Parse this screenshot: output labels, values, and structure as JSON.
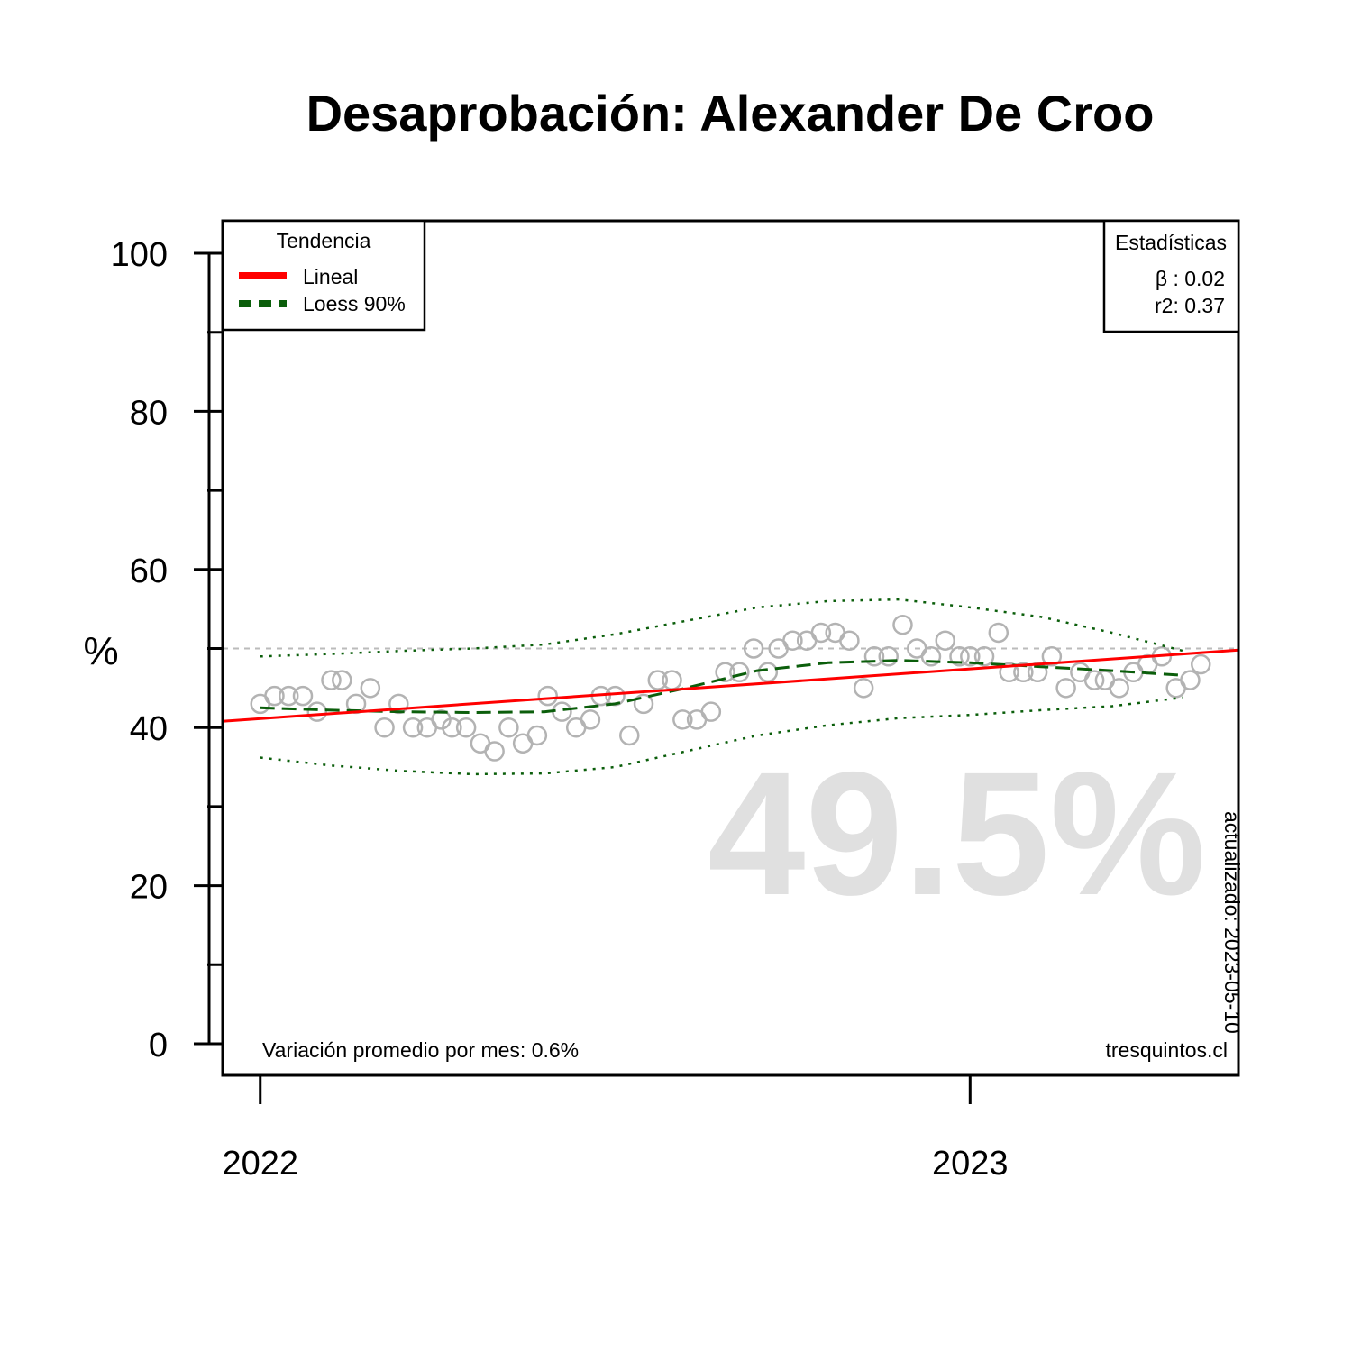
{
  "chart_data": {
    "type": "scatter",
    "title": "Desaprobación: Alexander De Croo",
    "ylabel": "%",
    "xlabel": "",
    "ylim": [
      0,
      100
    ],
    "y_ticks": [
      0,
      20,
      40,
      60,
      80,
      100
    ],
    "y_minor_ticks": [
      10,
      30,
      50,
      70,
      90
    ],
    "x_ticks": [
      {
        "label": "2022",
        "value": 2022.0
      },
      {
        "label": "2023",
        "value": 2023.0
      }
    ],
    "xlim": [
      2021.947,
      2023.378
    ],
    "reference_line": {
      "value": 50,
      "color": "#bbbbbb"
    },
    "big_value": "49.5%",
    "points": [
      [
        2022.0,
        43
      ],
      [
        2022.02,
        44
      ],
      [
        2022.04,
        44
      ],
      [
        2022.06,
        44
      ],
      [
        2022.08,
        42
      ],
      [
        2022.1,
        46
      ],
      [
        2022.115,
        46
      ],
      [
        2022.135,
        43
      ],
      [
        2022.155,
        45
      ],
      [
        2022.175,
        40
      ],
      [
        2022.195,
        43
      ],
      [
        2022.215,
        40
      ],
      [
        2022.235,
        40
      ],
      [
        2022.255,
        41
      ],
      [
        2022.27,
        40
      ],
      [
        2022.29,
        40
      ],
      [
        2022.31,
        38
      ],
      [
        2022.33,
        37
      ],
      [
        2022.35,
        40
      ],
      [
        2022.37,
        38
      ],
      [
        2022.39,
        39
      ],
      [
        2022.405,
        44
      ],
      [
        2022.425,
        42
      ],
      [
        2022.445,
        40
      ],
      [
        2022.465,
        41
      ],
      [
        2022.48,
        44
      ],
      [
        2022.5,
        44
      ],
      [
        2022.52,
        39
      ],
      [
        2022.54,
        43
      ],
      [
        2022.56,
        46
      ],
      [
        2022.58,
        46
      ],
      [
        2022.595,
        41
      ],
      [
        2022.615,
        41
      ],
      [
        2022.635,
        42
      ],
      [
        2022.655,
        47
      ],
      [
        2022.675,
        47
      ],
      [
        2022.695,
        50
      ],
      [
        2022.715,
        47
      ],
      [
        2022.73,
        50
      ],
      [
        2022.75,
        51
      ],
      [
        2022.77,
        51
      ],
      [
        2022.79,
        52
      ],
      [
        2022.81,
        52
      ],
      [
        2022.83,
        51
      ],
      [
        2022.85,
        45
      ],
      [
        2022.865,
        49
      ],
      [
        2022.885,
        49
      ],
      [
        2022.905,
        53
      ],
      [
        2022.925,
        50
      ],
      [
        2022.945,
        49
      ],
      [
        2022.965,
        51
      ],
      [
        2022.985,
        49
      ],
      [
        2023.0,
        49
      ],
      [
        2023.02,
        49
      ],
      [
        2023.04,
        52
      ],
      [
        2023.055,
        47
      ],
      [
        2023.075,
        47
      ],
      [
        2023.095,
        47
      ],
      [
        2023.115,
        49
      ],
      [
        2023.135,
        45
      ],
      [
        2023.155,
        47
      ],
      [
        2023.175,
        46
      ],
      [
        2023.19,
        46
      ],
      [
        2023.21,
        45
      ],
      [
        2023.23,
        47
      ],
      [
        2023.25,
        48
      ],
      [
        2023.27,
        49
      ],
      [
        2023.29,
        45
      ],
      [
        2023.31,
        46
      ],
      [
        2023.325,
        48
      ]
    ],
    "linear_trend": {
      "x": [
        2021.947,
        2023.378
      ],
      "y": [
        40.8,
        49.8
      ]
    },
    "loess": {
      "x": [
        2022.0,
        2022.1,
        2022.2,
        2022.3,
        2022.4,
        2022.5,
        2022.6,
        2022.7,
        2022.8,
        2022.9,
        2023.0,
        2023.1,
        2023.2,
        2023.3
      ],
      "y": [
        42.5,
        42.2,
        42.0,
        41.9,
        42.0,
        43.0,
        45.0,
        47.2,
        48.2,
        48.5,
        48.2,
        47.7,
        47.2,
        46.6
      ]
    },
    "loess_upper": {
      "x": [
        2022.0,
        2022.1,
        2022.2,
        2022.3,
        2022.4,
        2022.5,
        2022.6,
        2022.7,
        2022.8,
        2022.9,
        2023.0,
        2023.1,
        2023.2,
        2023.3
      ],
      "y": [
        49.0,
        49.3,
        49.7,
        50.0,
        50.5,
        51.8,
        53.5,
        55.2,
        56.0,
        56.2,
        55.2,
        54.0,
        52.0,
        49.7
      ]
    },
    "loess_lower": {
      "x": [
        2022.0,
        2022.1,
        2022.2,
        2022.3,
        2022.4,
        2022.5,
        2022.6,
        2022.7,
        2022.8,
        2022.9,
        2023.0,
        2023.1,
        2023.2,
        2023.3
      ],
      "y": [
        36.2,
        35.2,
        34.5,
        34.1,
        34.2,
        35.0,
        37.0,
        39.0,
        40.3,
        41.2,
        41.6,
        42.2,
        42.7,
        43.8
      ]
    },
    "legend": {
      "placement": "top-left",
      "title": "Tendencia",
      "entries": [
        {
          "label": "Lineal",
          "style": "solid",
          "color": "#ff0000"
        },
        {
          "label": "Loess 90%",
          "style": "dashed",
          "color": "#0b5e0b"
        }
      ]
    },
    "stats": {
      "placement": "top-right",
      "title": "Estadísticas",
      "beta": "β : 0.02",
      "r2": "r2: 0.37"
    },
    "footnote_left": "Variación promedio por mes: 0.6%",
    "footnote_right": "tresquintos.cl",
    "updated": "actualizado: 2023-05-10",
    "colors": {
      "points": "#b3b3b3",
      "linear": "#ff0000",
      "loess": "#0b5e0b",
      "big_value": "#e0e0e0"
    }
  }
}
